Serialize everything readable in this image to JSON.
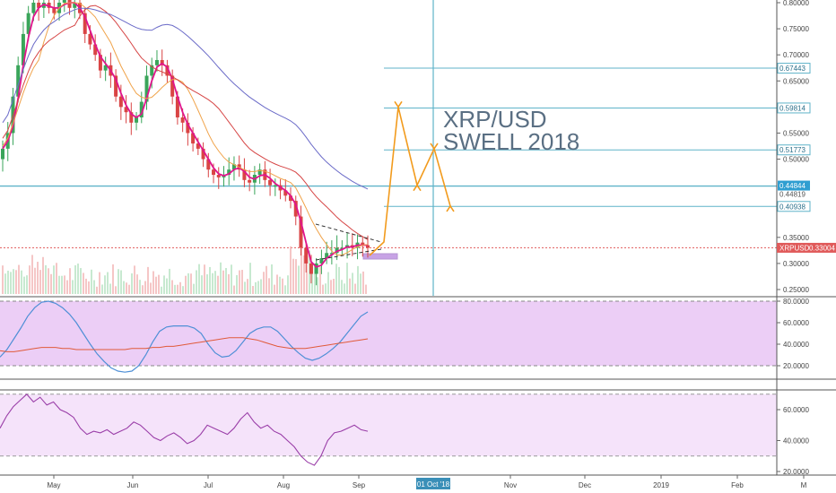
{
  "chart_data": [
    {
      "type": "candlestick",
      "symbol_tag": "XRPUSD",
      "current_price": 0.33004,
      "current_price_label": "0.33004",
      "annotation": {
        "line1": "XRP/USD",
        "line2": "SWELL 2018"
      },
      "ylim": [
        0.24,
        0.8
      ],
      "y_ticks": [
        "0.80000",
        "0.75000",
        "0.70000",
        "0.65000",
        "0.55000",
        "0.50000",
        "0.35000",
        "0.30000",
        "0.25000"
      ],
      "y_tick_values": [
        0.8,
        0.75,
        0.7,
        0.65,
        0.55,
        0.5,
        0.35,
        0.3,
        0.25
      ],
      "levels": [
        {
          "value": 0.67443,
          "label": "0.67443",
          "style": "box"
        },
        {
          "value": 0.59814,
          "label": "0.59814",
          "style": "box"
        },
        {
          "value": 0.51773,
          "label": "0.51773",
          "style": "box"
        },
        {
          "value": 0.44844,
          "label": "0.44844",
          "style": "filled"
        },
        {
          "value": 0.44819,
          "label": "0.44819",
          "style": "plain"
        },
        {
          "value": 0.40938,
          "label": "0.40938",
          "style": "box"
        }
      ],
      "x_ticks": [
        "May",
        "Jun",
        "Jul",
        "Aug",
        "Sep",
        "Nov",
        "Dec",
        "2019",
        "Feb",
        "M"
      ],
      "x_highlight_label": "01 Oct '18",
      "close_series": [
        0.52,
        0.55,
        0.62,
        0.68,
        0.74,
        0.78,
        0.8,
        0.79,
        0.8,
        0.79,
        0.78,
        0.8,
        0.81,
        0.79,
        0.8,
        0.78,
        0.74,
        0.72,
        0.7,
        0.67,
        0.68,
        0.66,
        0.62,
        0.6,
        0.59,
        0.57,
        0.58,
        0.61,
        0.66,
        0.68,
        0.69,
        0.68,
        0.66,
        0.62,
        0.58,
        0.57,
        0.55,
        0.53,
        0.52,
        0.5,
        0.48,
        0.47,
        0.465,
        0.47,
        0.48,
        0.49,
        0.48,
        0.46,
        0.455,
        0.47,
        0.48,
        0.46,
        0.45,
        0.45,
        0.44,
        0.43,
        0.42,
        0.39,
        0.33,
        0.3,
        0.28,
        0.3,
        0.31,
        0.32,
        0.32,
        0.33,
        0.33,
        0.335,
        0.33,
        0.34,
        0.335,
        0.33
      ],
      "forecast_path": [
        [
          0.33,
          0.34
        ],
        [
          0.6,
          0.598
        ],
        [
          0.45,
          0.452
        ],
        [
          0.52,
          0.518
        ],
        [
          0.41,
          0.409
        ]
      ],
      "stoch_ylim": [
        10,
        82
      ],
      "stoch_ticks": [
        "80.0000",
        "60.0000",
        "40.0000",
        "20.0000"
      ],
      "stoch_tick_values": [
        80,
        60,
        40,
        20
      ],
      "stoch_k": [
        28,
        35,
        45,
        55,
        66,
        74,
        79,
        80,
        78,
        74,
        68,
        60,
        50,
        40,
        31,
        24,
        18,
        15,
        14,
        15,
        20,
        30,
        42,
        52,
        56,
        57,
        57,
        57,
        55,
        50,
        40,
        32,
        28,
        29,
        34,
        42,
        50,
        54,
        56,
        56,
        52,
        45,
        38,
        32,
        27,
        25,
        27,
        31,
        36,
        42,
        50,
        58,
        66,
        70
      ],
      "stoch_d": [
        34,
        33,
        33,
        34,
        35,
        36,
        37,
        37,
        37,
        36,
        36,
        35,
        35,
        35,
        35,
        35,
        35,
        35,
        35,
        36,
        36,
        36,
        37,
        37,
        38,
        38,
        39,
        40,
        41,
        42,
        43,
        44,
        45,
        46,
        46,
        46,
        45,
        44,
        42,
        40,
        38,
        37,
        36,
        36,
        36,
        37,
        38,
        39,
        40,
        41,
        42,
        43,
        44,
        45
      ],
      "rsi_ylim": [
        15,
        75
      ],
      "rsi_ticks": [
        "60.0000",
        "40.0000",
        "20.0000"
      ],
      "rsi_tick_values": [
        60,
        40,
        20
      ],
      "rsi": [
        48,
        56,
        62,
        66,
        70,
        65,
        68,
        63,
        65,
        60,
        58,
        55,
        48,
        44,
        46,
        45,
        47,
        44,
        46,
        48,
        52,
        50,
        46,
        42,
        40,
        43,
        45,
        42,
        38,
        40,
        44,
        50,
        48,
        46,
        44,
        48,
        54,
        58,
        52,
        48,
        50,
        46,
        44,
        40,
        36,
        30,
        26,
        24,
        30,
        40,
        45,
        46,
        48,
        50,
        47,
        46
      ]
    }
  ]
}
